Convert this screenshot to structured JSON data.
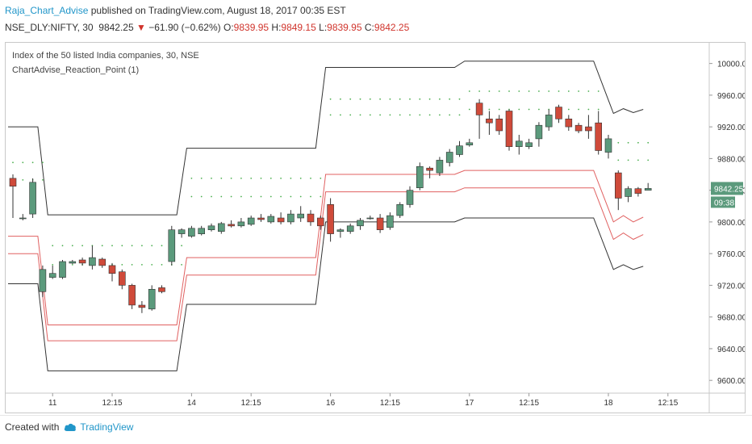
{
  "header": {
    "user": "Raja_Chart_Advise",
    "published": "published on TradingView.com, August 18, 2017 00:35 EST"
  },
  "ticker": {
    "symbol": "NSE_DLY:NIFTY, 30",
    "last": "9842.25",
    "arrow": "▼",
    "change": "−61.90 (−0.62%)",
    "o_label": "O:",
    "o": "9839.95",
    "h_label": "H:",
    "h": "9849.15",
    "l_label": "L:",
    "l": "9839.95",
    "c_label": "C:",
    "c": "9842.25"
  },
  "legend": {
    "line1": "Index of the 50 listed India companies, 30, NSE",
    "line2": "ChartAdvise_Reaction_Point (1)"
  },
  "footer": {
    "created_with": "Created with",
    "brand": "TradingView"
  },
  "colors": {
    "up": "#5b9a7c",
    "down": "#cf4a3a",
    "pivot_black": "#333333",
    "pivot_red": "#e06060",
    "dots": "#4caf50",
    "price_tag": "#5b9a7c"
  },
  "chart_data": {
    "type": "candlestick",
    "title": "Index of the 50 listed India companies, 30, NSE",
    "y_axis": {
      "min": 9590,
      "max": 10020,
      "ticks": [
        10000,
        9960,
        9920,
        9880,
        9840,
        9800,
        9760,
        9720,
        9680,
        9640,
        9600
      ],
      "tick_labels": [
        "10000.00",
        "9960.00",
        "9920.00",
        "9880.00",
        "9840.00",
        "9800.00",
        "9760.00",
        "9720.00",
        "9680.00",
        "9640.00",
        "9600.00"
      ]
    },
    "x_axis": {
      "labels": [
        "11",
        "12:15",
        "14",
        "12:15",
        "16",
        "12:15",
        "17",
        "12:15",
        "18",
        "12:15"
      ],
      "label_slots": [
        4,
        10,
        18,
        24,
        32,
        38,
        46,
        52,
        60,
        66
      ]
    },
    "last_price_tag": "9842.25",
    "countdown_tag": "09:38",
    "candles": [
      [
        9855,
        9845,
        9860,
        9805
      ],
      [
        9805,
        9805,
        9810,
        9802
      ],
      [
        9810,
        9850,
        9855,
        9805
      ],
      [
        9712,
        9740,
        9745,
        9705
      ],
      [
        9730,
        9735,
        9745,
        9728
      ],
      [
        9730,
        9750,
        9752,
        9728
      ],
      [
        9748,
        9750,
        9752,
        9747
      ],
      [
        9752,
        9748,
        9755,
        9745
      ],
      [
        9745,
        9755,
        9770,
        9740
      ],
      [
        9753,
        9745,
        9755,
        9742
      ],
      [
        9745,
        9735,
        9748,
        9725
      ],
      [
        9737,
        9720,
        9740,
        9715
      ],
      [
        9720,
        9695,
        9722,
        9690
      ],
      [
        9695,
        9692,
        9700,
        9685
      ],
      [
        9690,
        9715,
        9720,
        9688
      ],
      [
        9717,
        9712,
        9720,
        9710
      ],
      [
        9750,
        9790,
        9795,
        9745
      ],
      [
        9785,
        9790,
        9792,
        9780
      ],
      [
        9782,
        9792,
        9795,
        9780
      ],
      [
        9785,
        9792,
        9795,
        9783
      ],
      [
        9790,
        9795,
        9798,
        9788
      ],
      [
        9788,
        9798,
        9800,
        9785
      ],
      [
        9797,
        9795,
        9802,
        9793
      ],
      [
        9795,
        9800,
        9805,
        9793
      ],
      [
        9797,
        9805,
        9808,
        9795
      ],
      [
        9805,
        9803,
        9810,
        9800
      ],
      [
        9800,
        9807,
        9810,
        9798
      ],
      [
        9805,
        9800,
        9812,
        9797
      ],
      [
        9800,
        9810,
        9815,
        9797
      ],
      [
        9805,
        9810,
        9820,
        9800
      ],
      [
        9810,
        9800,
        9815,
        9795
      ],
      [
        9805,
        9795,
        9808,
        9790
      ],
      [
        9822,
        9785,
        9830,
        9775
      ],
      [
        9788,
        9790,
        9792,
        9780
      ],
      [
        9788,
        9795,
        9798,
        9785
      ],
      [
        9795,
        9802,
        9805,
        9790
      ],
      [
        9805,
        9805,
        9808,
        9803
      ],
      [
        9805,
        9790,
        9810,
        9786
      ],
      [
        9793,
        9808,
        9812,
        9790
      ],
      [
        9808,
        9822,
        9825,
        9805
      ],
      [
        9822,
        9840,
        9845,
        9818
      ],
      [
        9843,
        9870,
        9875,
        9840
      ],
      [
        9868,
        9865,
        9870,
        9855
      ],
      [
        9862,
        9878,
        9882,
        9858
      ],
      [
        9875,
        9888,
        9892,
        9870
      ],
      [
        9885,
        9896,
        9902,
        9882
      ],
      [
        9897,
        9900,
        9905,
        9895
      ],
      [
        9950,
        9935,
        9955,
        9905
      ],
      [
        9930,
        9925,
        9940,
        9910
      ],
      [
        9930,
        9915,
        9935,
        9910
      ],
      [
        9940,
        9895,
        9942,
        9890
      ],
      [
        9895,
        9902,
        9910,
        9885
      ],
      [
        9895,
        9900,
        9905,
        9892
      ],
      [
        9905,
        9922,
        9926,
        9895
      ],
      [
        9920,
        9935,
        9942,
        9915
      ],
      [
        9945,
        9930,
        9948,
        9925
      ],
      [
        9930,
        9920,
        9935,
        9915
      ],
      [
        9922,
        9915,
        9925,
        9912
      ],
      [
        9920,
        9915,
        9935,
        9905
      ],
      [
        9925,
        9890,
        9940,
        9885
      ],
      [
        9888,
        9905,
        9910,
        9880
      ],
      [
        9862,
        9830,
        9865,
        9815
      ],
      [
        9832,
        9842,
        9845,
        9825
      ],
      [
        9842,
        9836,
        9844,
        9832
      ],
      [
        9839.95,
        9842.25,
        9849.15,
        9839.95
      ]
    ],
    "pivot_lines": {
      "black_upper": [
        [
          0,
          9920
        ],
        [
          3,
          9920
        ],
        [
          4,
          9809
        ],
        [
          17,
          9809
        ],
        [
          18,
          9893
        ],
        [
          31,
          9893
        ],
        [
          32,
          9995
        ],
        [
          45,
          9995
        ],
        [
          46,
          10003
        ],
        [
          59,
          10003
        ],
        [
          61,
          9937
        ],
        [
          62,
          9943
        ],
        [
          63,
          9938
        ],
        [
          64,
          9942
        ]
      ],
      "red_upper": [
        [
          0,
          9782
        ],
        [
          3,
          9782
        ],
        [
          4,
          9670
        ],
        [
          17,
          9670
        ],
        [
          18,
          9755
        ],
        [
          31,
          9755
        ],
        [
          32,
          9860
        ],
        [
          45,
          9860
        ],
        [
          46,
          9865
        ],
        [
          59,
          9865
        ],
        [
          61,
          9800
        ],
        [
          62,
          9808
        ],
        [
          63,
          9800
        ],
        [
          64,
          9806
        ]
      ],
      "red_lower": [
        [
          0,
          9760
        ],
        [
          3,
          9760
        ],
        [
          4,
          9650
        ],
        [
          17,
          9650
        ],
        [
          18,
          9733
        ],
        [
          31,
          9733
        ],
        [
          32,
          9838
        ],
        [
          45,
          9838
        ],
        [
          46,
          9843
        ],
        [
          59,
          9843
        ],
        [
          61,
          9778
        ],
        [
          62,
          9786
        ],
        [
          63,
          9778
        ],
        [
          64,
          9784
        ]
      ],
      "black_lower": [
        [
          0,
          9722
        ],
        [
          3,
          9722
        ],
        [
          4,
          9612
        ],
        [
          17,
          9612
        ],
        [
          18,
          9696
        ],
        [
          31,
          9696
        ],
        [
          32,
          9800
        ],
        [
          45,
          9800
        ],
        [
          46,
          9805
        ],
        [
          59,
          9805
        ],
        [
          61,
          9740
        ],
        [
          62,
          9746
        ],
        [
          63,
          9740
        ],
        [
          64,
          9744
        ]
      ]
    },
    "dot_rows": [
      {
        "from": 0,
        "to": 3,
        "value": 9875
      },
      {
        "from": 0,
        "to": 3,
        "value": 9853
      },
      {
        "from": 4,
        "to": 17,
        "value": 9770
      },
      {
        "from": 4,
        "to": 17,
        "value": 9746
      },
      {
        "from": 18,
        "to": 31,
        "value": 9855
      },
      {
        "from": 18,
        "to": 31,
        "value": 9832
      },
      {
        "from": 32,
        "to": 45,
        "value": 9955
      },
      {
        "from": 32,
        "to": 45,
        "value": 9935
      },
      {
        "from": 46,
        "to": 59,
        "value": 9965
      },
      {
        "from": 46,
        "to": 59,
        "value": 9942
      },
      {
        "from": 61,
        "to": 64,
        "value": 9900
      },
      {
        "from": 61,
        "to": 64,
        "value": 9878
      }
    ]
  }
}
